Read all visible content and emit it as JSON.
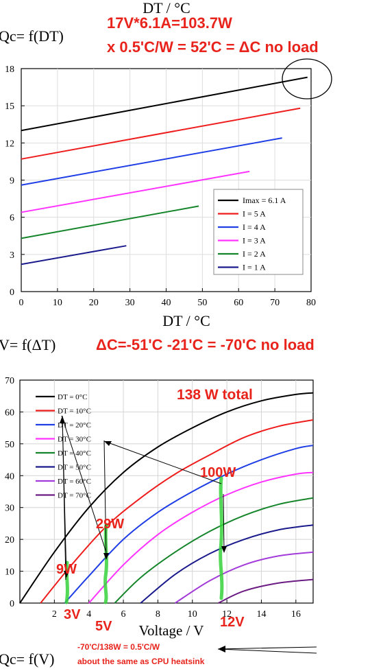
{
  "colors": {
    "annot": "#e8231c",
    "highlight": "#35d23a",
    "series": [
      "#000000",
      "#ef1c1c",
      "#1f3ee6",
      "#ff33ff",
      "#14852a",
      "#1a1a8c",
      "#a23bd9",
      "#6c1b83"
    ]
  },
  "top_labels": {
    "dt_header": "DT / °C",
    "qc_label": "Qc= f(DT)",
    "formula1": "17V*6.1A=103.7W",
    "formula2": "x 0.5'C/W = 52'C = ΔC no load"
  },
  "middle_labels": {
    "v_label": "V= f(ΔT)",
    "delta_formula": "ΔC=-51'C -21'C = -70'C no load"
  },
  "bottom_labels": {
    "total": "138 W total",
    "p100": "100W",
    "p29": "29W",
    "p9": "9W",
    "v3": "3V",
    "v5": "5V",
    "v12": "12V",
    "qc_v": "Qc= f(V)",
    "note1": "-70'C/138W = 0.5'C/W",
    "note2": "about the same as CPU heatsink"
  },
  "chart_data": [
    {
      "type": "line",
      "xlabel": "DT / °C",
      "ylabel": "",
      "xlim": [
        0,
        80
      ],
      "ylim": [
        0,
        18
      ],
      "xticks": [
        0,
        10,
        20,
        30,
        40,
        50,
        60,
        70,
        80
      ],
      "yticks": [
        0,
        3,
        6,
        9,
        12,
        15,
        18
      ],
      "legend": "bottom-right",
      "series": [
        {
          "name": "Imax = 6.1 A",
          "x": [
            0,
            79
          ],
          "y": [
            13.0,
            17.3
          ]
        },
        {
          "name": "I = 5 A",
          "x": [
            0,
            77
          ],
          "y": [
            10.7,
            14.8
          ]
        },
        {
          "name": "I = 4 A",
          "x": [
            0,
            72
          ],
          "y": [
            8.6,
            12.4
          ]
        },
        {
          "name": "I = 3 A",
          "x": [
            0,
            63
          ],
          "y": [
            6.4,
            9.7
          ]
        },
        {
          "name": "I = 2 A",
          "x": [
            0,
            49
          ],
          "y": [
            4.3,
            6.9
          ]
        },
        {
          "name": "I = 1 A",
          "x": [
            0,
            29
          ],
          "y": [
            2.2,
            3.7
          ]
        }
      ]
    },
    {
      "type": "line",
      "xlabel": "Voltage / V",
      "ylabel": "",
      "xlim": [
        0,
        17
      ],
      "ylim": [
        0,
        70
      ],
      "xticks": [
        2,
        4,
        6,
        8,
        10,
        12,
        14,
        16
      ],
      "yticks": [
        0,
        10,
        20,
        30,
        40,
        50,
        60,
        70
      ],
      "legend": "top-left",
      "series": [
        {
          "name": "DT = 0°C",
          "x": [
            0,
            2,
            4,
            6,
            8,
            10,
            12,
            14,
            16,
            17
          ],
          "y": [
            0,
            16,
            30,
            41,
            49,
            55,
            60,
            63.5,
            65.5,
            66
          ]
        },
        {
          "name": "DT = 10°C",
          "x": [
            1.2,
            3,
            5,
            7,
            9,
            11,
            13,
            15,
            17
          ],
          "y": [
            0,
            12,
            24,
            33,
            40.5,
            46.5,
            52,
            55.5,
            57.5
          ]
        },
        {
          "name": "DT = 20°C",
          "x": [
            2.6,
            4,
            6,
            8,
            10,
            12,
            14,
            16,
            17
          ],
          "y": [
            0,
            8.5,
            20,
            28.5,
            35,
            40.5,
            45,
            48.5,
            49.5
          ]
        },
        {
          "name": "DT = 30°C",
          "x": [
            4,
            6,
            8,
            10,
            12,
            14,
            16,
            17
          ],
          "y": [
            0,
            12,
            21.5,
            28.5,
            34,
            38,
            40.5,
            41
          ]
        },
        {
          "name": "DT = 40°C",
          "x": [
            5.5,
            7,
            9,
            11,
            13,
            15,
            17
          ],
          "y": [
            0,
            8,
            16,
            22.5,
            27.5,
            31,
            33
          ]
        },
        {
          "name": "DT = 50°C",
          "x": [
            7,
            9,
            11,
            13,
            15,
            17
          ],
          "y": [
            0,
            9,
            15.5,
            20,
            23,
            24.5
          ]
        },
        {
          "name": "DT = 60°C",
          "x": [
            9,
            11,
            13,
            15,
            17
          ],
          "y": [
            0,
            7,
            12,
            14.8,
            16
          ]
        },
        {
          "name": "DT = 70°C",
          "x": [
            11.5,
            13,
            15,
            17
          ],
          "y": [
            0,
            3.8,
            6.3,
            7.4
          ]
        }
      ]
    }
  ]
}
